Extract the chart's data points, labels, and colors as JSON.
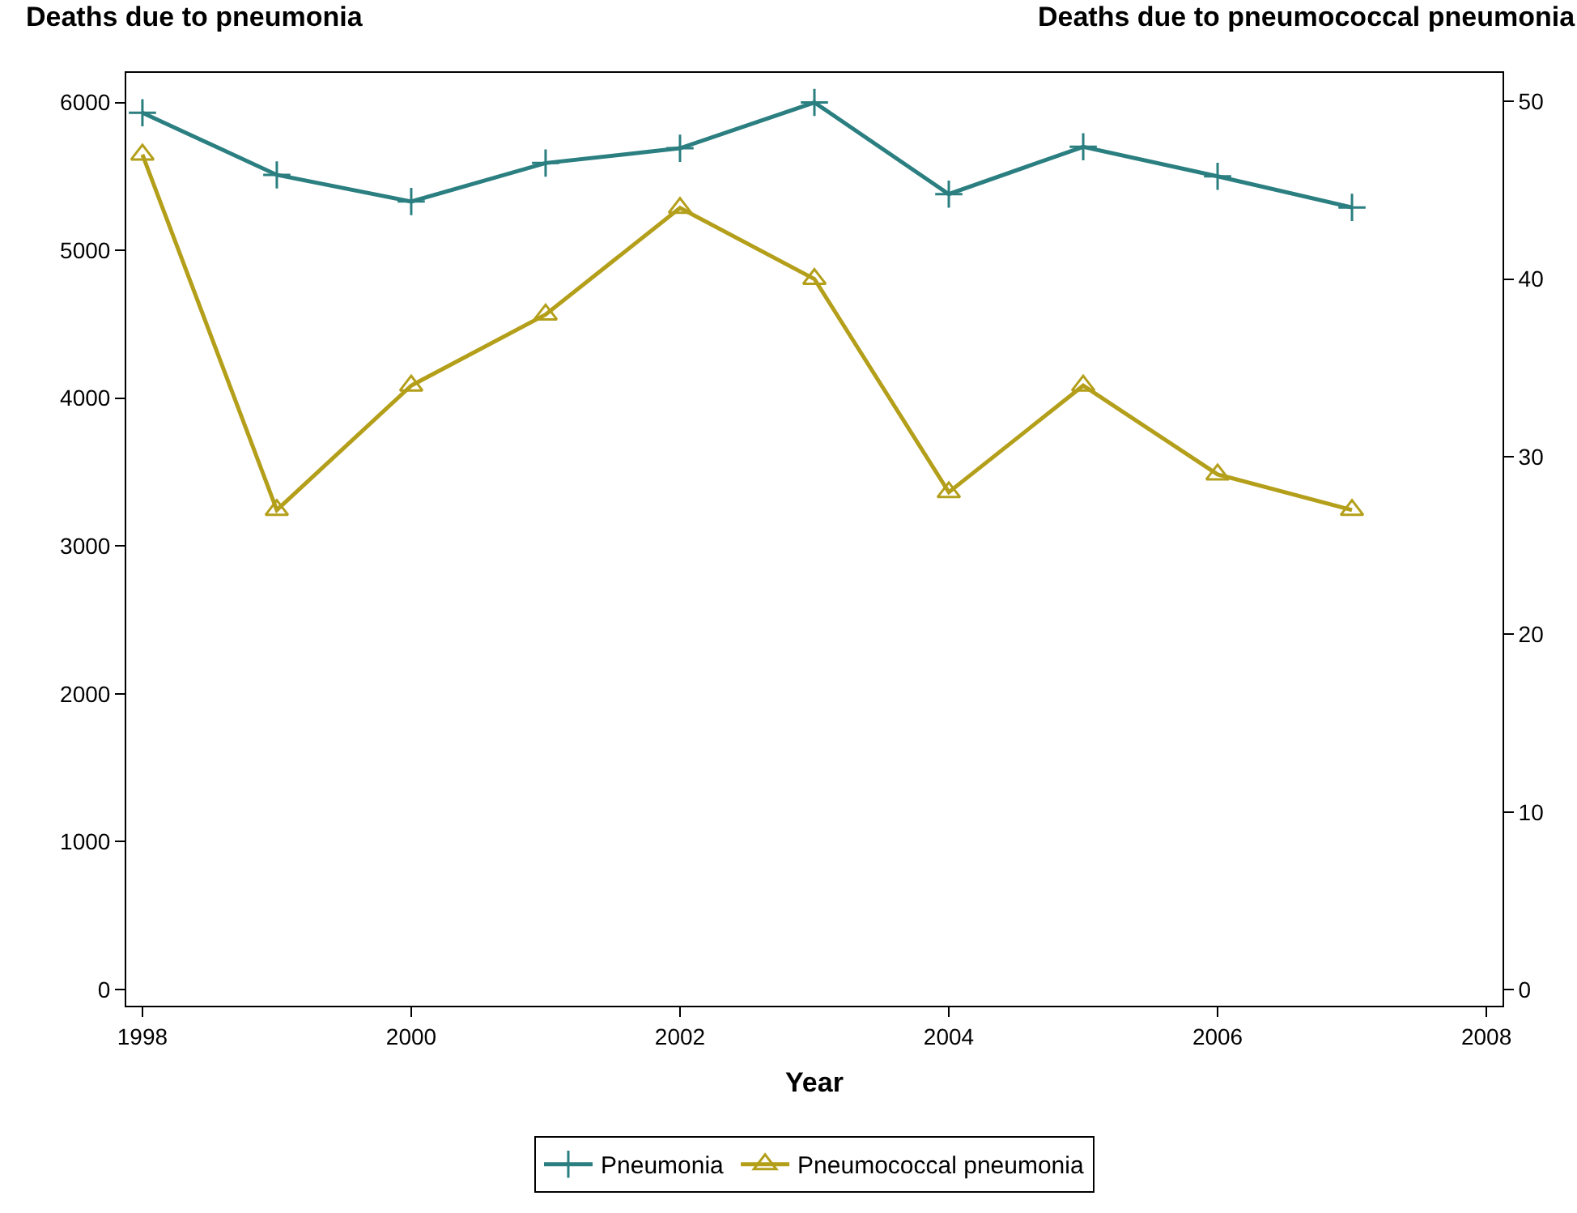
{
  "chart_data": {
    "type": "line",
    "xlabel": "Year",
    "ylabel": "Deaths due to pneumonia",
    "y2label": "Deaths due to pneumococcal pneumonia",
    "x": [
      1998,
      1999,
      2000,
      2001,
      2002,
      2003,
      2004,
      2005,
      2006,
      2007
    ],
    "series": [
      {
        "name": "Pneumonia",
        "color": "#2b7f80",
        "marker": "cross",
        "values": [
          5930,
          5510,
          5330,
          5590,
          5690,
          6000,
          5380,
          5700,
          5500,
          5290
        ]
      },
      {
        "name": "Pneumococcal pneumonia",
        "color": "#b49f1b",
        "marker": "triangle",
        "axis": "y2",
        "values": [
          47,
          27,
          34,
          38,
          44,
          40,
          28,
          34,
          29,
          27
        ]
      }
    ],
    "xlim": [
      1997.88,
      2008.12
    ],
    "xticks": [
      1998,
      2000,
      2002,
      2004,
      2006,
      2008
    ],
    "ylim": [
      -110,
      6200
    ],
    "yticks": [
      0,
      1000,
      2000,
      3000,
      4000,
      5000,
      6000
    ],
    "y2lim": [
      -0.9,
      51.6
    ],
    "y2ticks": [
      0,
      10,
      20,
      30,
      40,
      50
    ],
    "legend": "bottom"
  }
}
